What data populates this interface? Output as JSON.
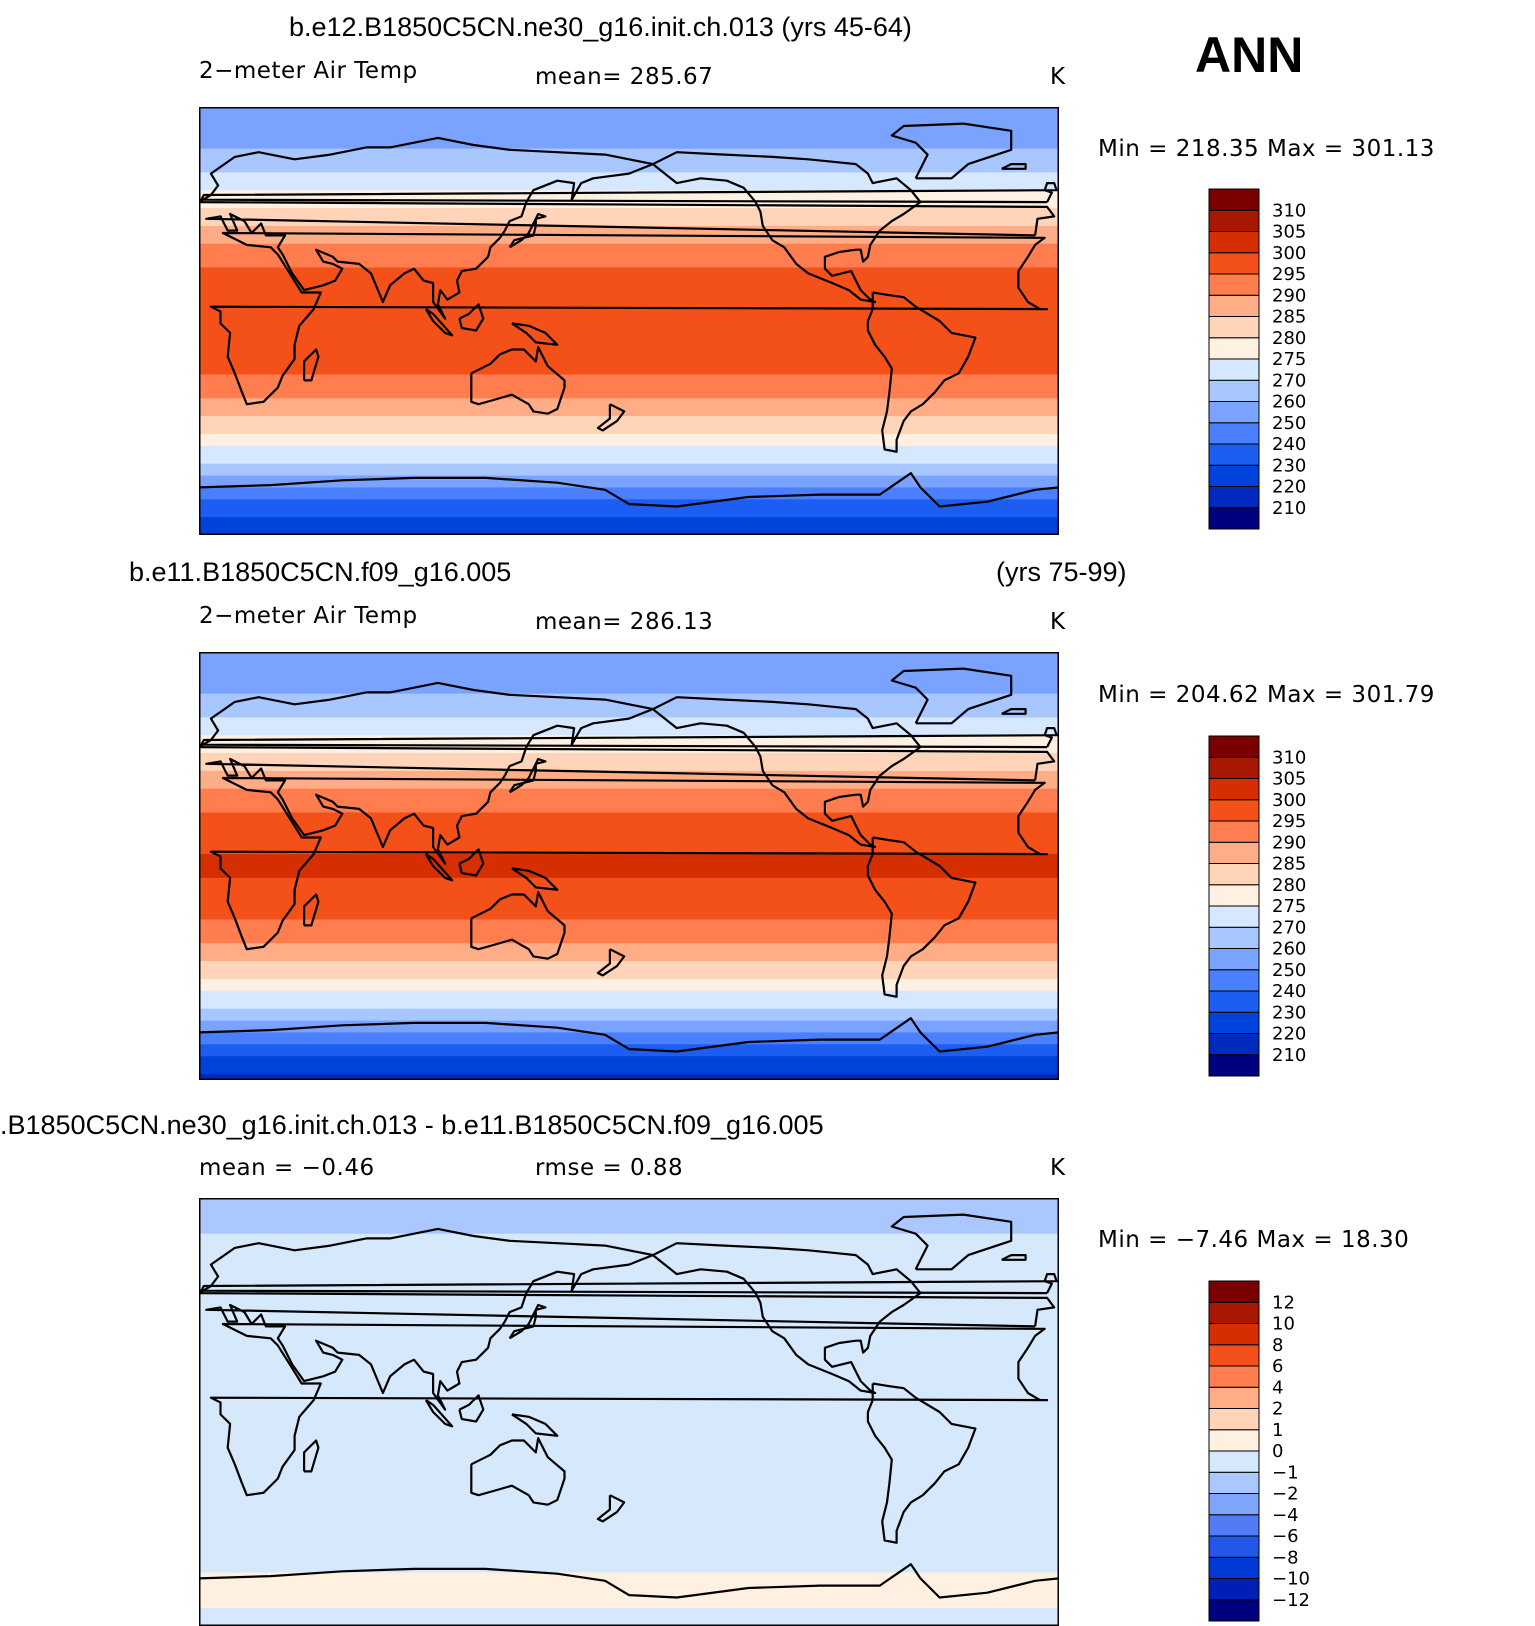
{
  "annotation": "ANN",
  "colors": {
    "abs_levels": [
      "#00007f",
      "#002abd",
      "#0043dc",
      "#1d5ef2",
      "#4a7fff",
      "#7aa3ff",
      "#a8c6ff",
      "#d6e8ff",
      "#fff0e1",
      "#ffd4b8",
      "#ffad87",
      "#ff7d4e",
      "#f45019",
      "#d52e00",
      "#a81700",
      "#7b0000"
    ],
    "diff_levels": [
      "#00007f",
      "#0020b3",
      "#0039d6",
      "#2456ea",
      "#527cf5",
      "#80a3fb",
      "#aac7ff",
      "#d6e8fb",
      "#fff0e1",
      "#ffd4b8",
      "#ffad87",
      "#ff7d4e",
      "#f45019",
      "#d52e00",
      "#a81700",
      "#7b0000"
    ]
  },
  "panels": [
    {
      "title": "b.e12.B1850C5CN.ne30_g16.init.ch.013 (yrs 45-64)",
      "left_label": "2−meter Air Temp",
      "stat_label": "mean=  285.67",
      "units": "K",
      "minmax": "Min  =  218.35  Max  =  301.13"
    },
    {
      "title": "b.e11.B1850C5CN.f09_g16.005",
      "title_right": "(yrs 75-99)",
      "left_label": "2−meter Air Temp",
      "stat_label": "mean=  286.13",
      "units": "K",
      "minmax": "Min  =  204.62  Max  =  301.79"
    },
    {
      "title": ".B1850C5CN.ne30_g16.init.ch.013 - b.e11.B1850C5CN.f09_g16.005",
      "left_label": "mean  =     −0.46",
      "stat_label": "rmse  =     0.88",
      "units": "K",
      "minmax": "Min  =     −7.46  Max  =     18.30"
    }
  ],
  "chart_data": [
    {
      "type": "heatmap",
      "title": "b.e12.B1850C5CN.ne30_g16.init.ch.013 (yrs 45-64)",
      "variable": "2−meter Air Temp",
      "units": "K",
      "mean": 285.67,
      "min": 218.35,
      "max": 301.13,
      "colorbar_labels": [
        "210",
        "220",
        "230",
        "240",
        "250",
        "260",
        "270",
        "275",
        "280",
        "285",
        "290",
        "295",
        "300",
        "305",
        "310"
      ],
      "zonal_profile": [
        {
          "lat": 90,
          "value": 250
        },
        {
          "lat": 75,
          "value": 258
        },
        {
          "lat": 60,
          "value": 272
        },
        {
          "lat": 45,
          "value": 282
        },
        {
          "lat": 30,
          "value": 291
        },
        {
          "lat": 15,
          "value": 298
        },
        {
          "lat": 0,
          "value": 300
        },
        {
          "lat": -15,
          "value": 298
        },
        {
          "lat": -30,
          "value": 291
        },
        {
          "lat": -45,
          "value": 281
        },
        {
          "lat": -60,
          "value": 270
        },
        {
          "lat": -75,
          "value": 240
        },
        {
          "lat": -90,
          "value": 222
        }
      ]
    },
    {
      "type": "heatmap",
      "title": "b.e11.B1850C5CN.f09_g16.005 (yrs 75-99)",
      "variable": "2−meter Air Temp",
      "units": "K",
      "mean": 286.13,
      "min": 204.62,
      "max": 301.79,
      "colorbar_labels": [
        "210",
        "220",
        "230",
        "240",
        "250",
        "260",
        "270",
        "275",
        "280",
        "285",
        "290",
        "295",
        "300",
        "305",
        "310"
      ],
      "zonal_profile": [
        {
          "lat": 90,
          "value": 250
        },
        {
          "lat": 75,
          "value": 258
        },
        {
          "lat": 60,
          "value": 272
        },
        {
          "lat": 45,
          "value": 282
        },
        {
          "lat": 30,
          "value": 291
        },
        {
          "lat": 15,
          "value": 298
        },
        {
          "lat": 0,
          "value": 301
        },
        {
          "lat": -15,
          "value": 298
        },
        {
          "lat": -30,
          "value": 291
        },
        {
          "lat": -45,
          "value": 281
        },
        {
          "lat": -60,
          "value": 270
        },
        {
          "lat": -75,
          "value": 238
        },
        {
          "lat": -90,
          "value": 218
        }
      ]
    },
    {
      "type": "heatmap",
      "title": ".B1850C5CN.ne30_g16.init.ch.013 - b.e11.B1850C5CN.f09_g16.005",
      "units": "K",
      "mean": -0.46,
      "rmse": 0.88,
      "min": -7.46,
      "max": 18.3,
      "colorbar_labels": [
        "−12",
        "−10",
        "−8",
        "−6",
        "−4",
        "−2",
        "−1",
        "0",
        "1",
        "2",
        "4",
        "6",
        "8",
        "10",
        "12"
      ],
      "zonal_profile": [
        {
          "lat": 90,
          "value": -1.5
        },
        {
          "lat": 75,
          "value": -1
        },
        {
          "lat": 60,
          "value": -0.5
        },
        {
          "lat": 45,
          "value": -0.5
        },
        {
          "lat": 30,
          "value": -0.5
        },
        {
          "lat": 15,
          "value": -0.5
        },
        {
          "lat": 0,
          "value": -0.5
        },
        {
          "lat": -15,
          "value": -0.5
        },
        {
          "lat": -30,
          "value": -0.5
        },
        {
          "lat": -45,
          "value": -0.5
        },
        {
          "lat": -60,
          "value": -0.5
        },
        {
          "lat": -75,
          "value": 0.5
        },
        {
          "lat": -90,
          "value": -0.5
        }
      ]
    }
  ]
}
